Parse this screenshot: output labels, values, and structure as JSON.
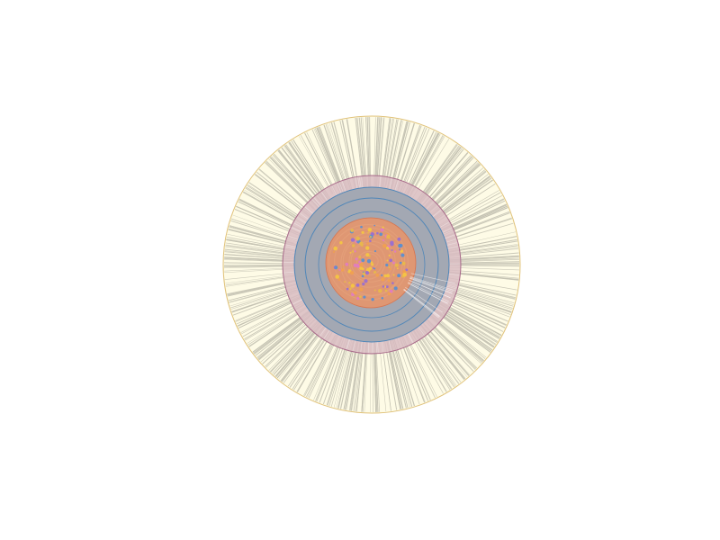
{
  "diagram": {
    "type": "radial-network",
    "rings": [
      {
        "level": "outer",
        "fill": "#fefbe6",
        "stroke": "#e0c27a",
        "spoke_color": "#c2c0b0"
      },
      {
        "level": "middle",
        "fill": "#d9bcc2",
        "stroke": "#a86a8a"
      },
      {
        "level": "inner",
        "fill": "#a3a8b3",
        "stroke": "#4f86b8"
      },
      {
        "level": "core",
        "fill": "#e6956c",
        "stroke": "#d8744e"
      }
    ],
    "core_node_colors": [
      "#f4c542",
      "#e07cc0",
      "#5b8fd0",
      "#f0a050",
      "#9a6fd0",
      "#e8b84a"
    ],
    "core_line_color": "#e3a07a",
    "spoke_count": 520,
    "core_node_count": 140
  }
}
